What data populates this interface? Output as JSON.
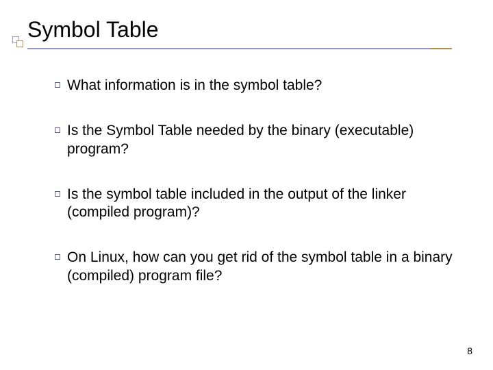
{
  "slide": {
    "title": "Symbol Table",
    "bullets": [
      "What information is in the symbol table?",
      "Is the Symbol Table needed by the binary (executable) program?",
      "Is the symbol table included in the output of the linker (compiled program)?",
      "On Linux, how can you get rid of the symbol table in a binary (compiled) program file?"
    ],
    "page_number": "8"
  },
  "style": {
    "title_fontsize": 32,
    "body_fontsize": 21,
    "text_color": "#000000",
    "background_color": "#ffffff",
    "underline_main_color": "#9999cc",
    "underline_accent_color": "#b28f4a",
    "bullet_border_color": "#5a5a99",
    "deco_color_a": "#9999cc",
    "deco_color_b": "#b28f4a"
  }
}
